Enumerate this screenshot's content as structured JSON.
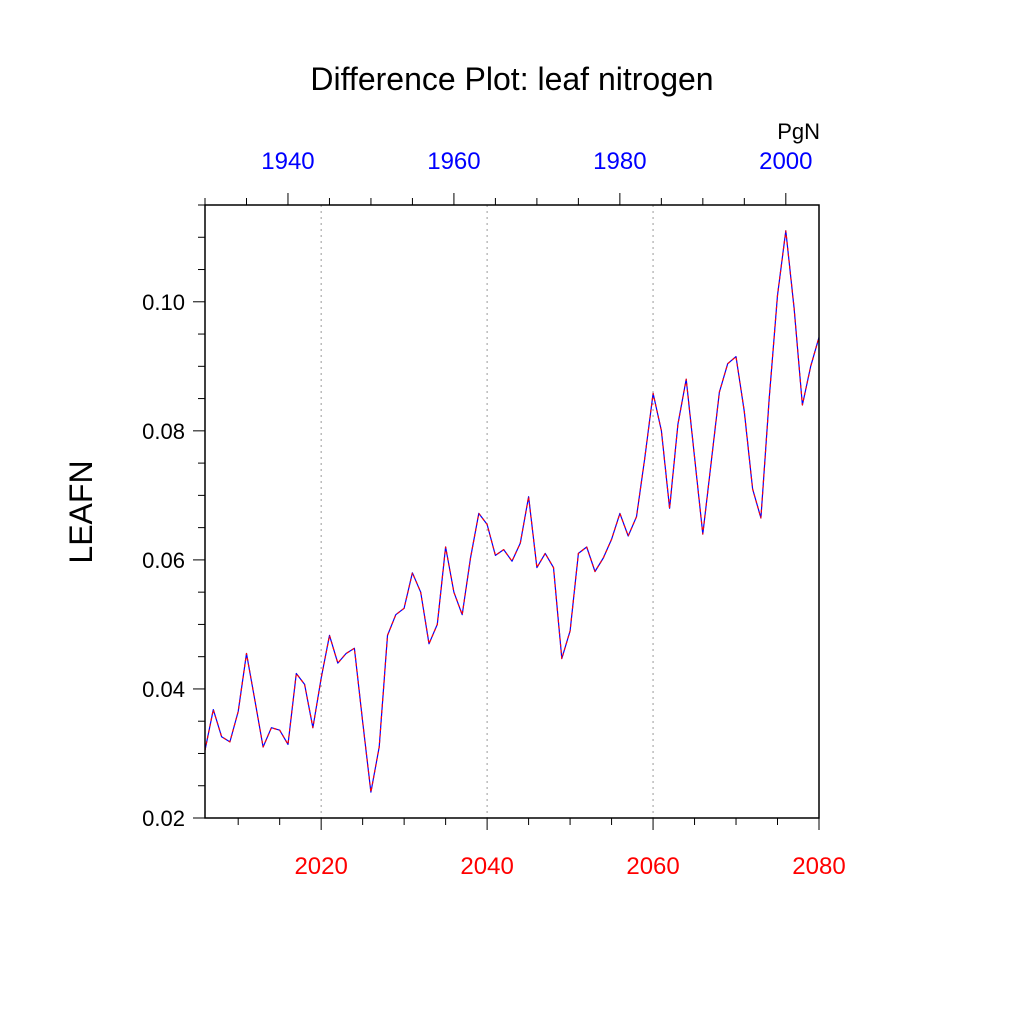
{
  "chart_data": {
    "type": "line",
    "title": "Difference Plot: leaf nitrogen",
    "ylabel": "LEAFN",
    "units_label": "PgN",
    "ylim": [
      0.02,
      0.115
    ],
    "y_ticks": [
      0.02,
      0.04,
      0.06,
      0.08,
      0.1
    ],
    "y_tick_labels": [
      "0.02",
      "0.04",
      "0.06",
      "0.08",
      "0.10"
    ],
    "bottom_axis": {
      "range": [
        2006,
        2080
      ],
      "ticks": [
        2020,
        2040,
        2060,
        2080
      ],
      "tick_labels": [
        "2020",
        "2040",
        "2060",
        "2080"
      ],
      "color": "#ff0000"
    },
    "top_axis": {
      "range": [
        1930,
        2004
      ],
      "ticks": [
        1940,
        1960,
        1980,
        2000
      ],
      "tick_labels": [
        "1940",
        "1960",
        "1980",
        "2000"
      ],
      "color": "#0000ff"
    },
    "grid": "vertical dotted at bottom-axis major ticks",
    "series": [
      {
        "color": "#0000ff",
        "style": "solid",
        "x": [
          2006,
          2007,
          2008,
          2009,
          2010,
          2011,
          2012,
          2013,
          2014,
          2015,
          2016,
          2017,
          2018,
          2019,
          2020,
          2021,
          2022,
          2023,
          2024,
          2025,
          2026,
          2027,
          2028,
          2029,
          2030,
          2031,
          2032,
          2033,
          2034,
          2035,
          2036,
          2037,
          2038,
          2039,
          2040,
          2041,
          2042,
          2043,
          2044,
          2045,
          2046,
          2047,
          2048,
          2049,
          2050,
          2051,
          2052,
          2053,
          2054,
          2055,
          2056,
          2057,
          2058,
          2059,
          2060,
          2061,
          2062,
          2063,
          2064,
          2065,
          2066,
          2067,
          2068,
          2069,
          2070,
          2071,
          2072,
          2073,
          2074,
          2075,
          2076,
          2077,
          2078,
          2079,
          2080
        ],
        "values": [
          0.0305,
          0.0368,
          0.0326,
          0.0318,
          0.0365,
          0.0455,
          0.0383,
          0.031,
          0.034,
          0.0336,
          0.0314,
          0.0424,
          0.0407,
          0.034,
          0.0417,
          0.0483,
          0.044,
          0.0455,
          0.0463,
          0.035,
          0.024,
          0.031,
          0.0483,
          0.0515,
          0.0525,
          0.058,
          0.055,
          0.047,
          0.05,
          0.062,
          0.055,
          0.0515,
          0.0603,
          0.0672,
          0.0655,
          0.0607,
          0.0616,
          0.0598,
          0.0626,
          0.0698,
          0.0588,
          0.061,
          0.0588,
          0.0447,
          0.049,
          0.061,
          0.062,
          0.0582,
          0.0603,
          0.0632,
          0.0672,
          0.0637,
          0.0667,
          0.0758,
          0.0858,
          0.08,
          0.068,
          0.081,
          0.088,
          0.076,
          0.064,
          0.075,
          0.086,
          0.0904,
          0.0915,
          0.083,
          0.071,
          0.0665,
          0.085,
          0.101,
          0.111,
          0.099,
          0.084,
          0.09,
          0.0945
        ]
      },
      {
        "color": "#ff0000",
        "style": "dashed",
        "x": [
          2006,
          2007,
          2008,
          2009,
          2010,
          2011,
          2012,
          2013,
          2014,
          2015,
          2016,
          2017,
          2018,
          2019,
          2020,
          2021,
          2022,
          2023,
          2024,
          2025,
          2026,
          2027,
          2028,
          2029,
          2030,
          2031,
          2032,
          2033,
          2034,
          2035,
          2036,
          2037,
          2038,
          2039,
          2040,
          2041,
          2042,
          2043,
          2044,
          2045,
          2046,
          2047,
          2048,
          2049,
          2050,
          2051,
          2052,
          2053,
          2054,
          2055,
          2056,
          2057,
          2058,
          2059,
          2060,
          2061,
          2062,
          2063,
          2064,
          2065,
          2066,
          2067,
          2068,
          2069,
          2070,
          2071,
          2072,
          2073,
          2074,
          2075,
          2076,
          2077,
          2078,
          2079,
          2080
        ],
        "values": [
          0.0305,
          0.0368,
          0.0326,
          0.0318,
          0.0365,
          0.0455,
          0.0383,
          0.031,
          0.034,
          0.0336,
          0.0314,
          0.0424,
          0.0407,
          0.034,
          0.0417,
          0.0483,
          0.044,
          0.0455,
          0.0463,
          0.035,
          0.024,
          0.031,
          0.0483,
          0.0515,
          0.0525,
          0.058,
          0.055,
          0.047,
          0.05,
          0.062,
          0.055,
          0.0515,
          0.0603,
          0.0672,
          0.0655,
          0.0607,
          0.0616,
          0.0598,
          0.0626,
          0.0698,
          0.0588,
          0.061,
          0.0588,
          0.0447,
          0.049,
          0.061,
          0.062,
          0.0582,
          0.0603,
          0.0632,
          0.0672,
          0.0637,
          0.0667,
          0.0758,
          0.0858,
          0.08,
          0.068,
          0.081,
          0.088,
          0.076,
          0.064,
          0.075,
          0.086,
          0.0904,
          0.0915,
          0.083,
          0.071,
          0.0665,
          0.085,
          0.101,
          0.111,
          0.099,
          0.084,
          0.09,
          0.0945
        ]
      }
    ]
  }
}
